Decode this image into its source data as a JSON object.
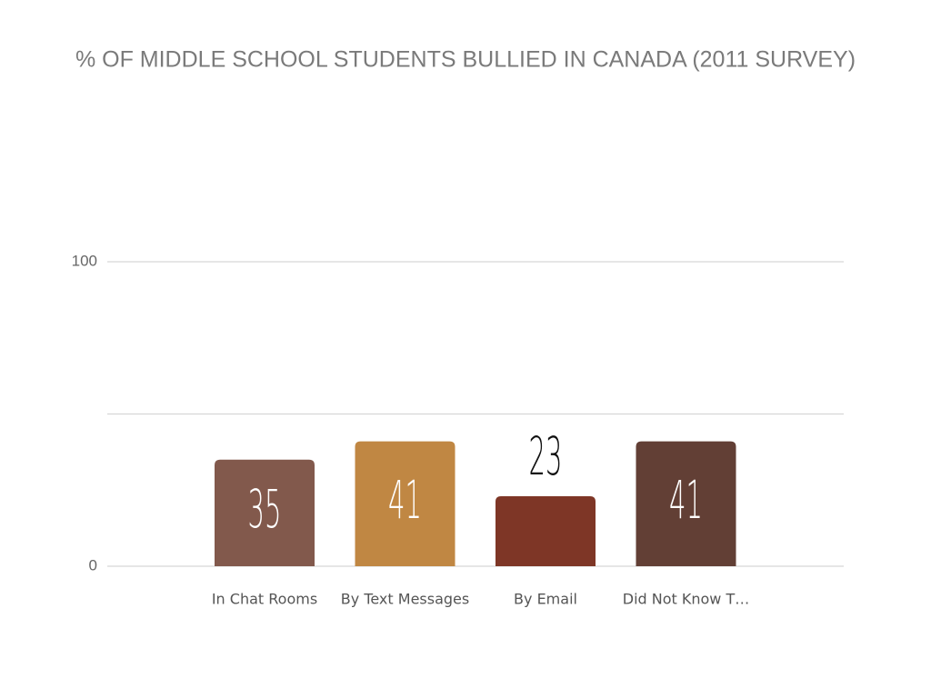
{
  "chart_data": {
    "type": "bar",
    "title": "% OF MIDDLE SCHOOL STUDENTS BULLIED IN CANADA (2011 SURVEY)",
    "categories": [
      "In Chat Rooms",
      "By Text Messages",
      "By Email",
      "Did Not Know T…"
    ],
    "values": [
      35,
      41,
      23,
      41
    ],
    "colors": [
      "#82594c",
      "#c08743",
      "#7e3626",
      "#623f35"
    ],
    "ylim": [
      0,
      100
    ],
    "yticks": [
      0,
      {
        "value": 50,
        "label": null
      },
      100
    ],
    "grid": true
  }
}
